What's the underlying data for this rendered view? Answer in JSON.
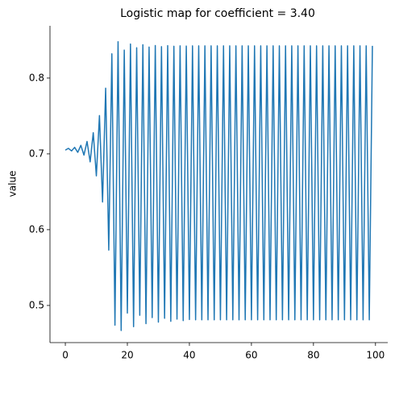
{
  "chart_data": {
    "type": "line",
    "title": "Logistic map for coefficient = 3.40",
    "y_label": "value",
    "x": [
      0,
      1,
      2,
      3,
      4,
      5,
      6,
      7,
      8,
      9,
      10,
      11,
      12,
      13,
      14,
      15,
      16,
      17,
      18,
      19,
      20,
      21,
      22,
      23,
      24,
      25,
      26,
      27,
      28,
      29,
      30,
      31,
      32,
      33,
      34,
      35,
      36,
      37,
      38,
      39,
      40,
      41,
      42,
      43,
      44,
      45,
      46,
      47,
      48,
      49,
      50,
      51,
      52,
      53,
      54,
      55,
      56,
      57,
      58,
      59,
      60,
      61,
      62,
      63,
      64,
      65,
      66,
      67,
      68,
      69,
      70,
      71,
      72,
      73,
      74,
      75,
      76,
      77,
      78,
      79,
      80,
      81,
      82,
      83,
      84,
      85,
      86,
      87,
      88,
      89,
      90,
      91,
      92,
      93,
      94,
      95,
      96,
      97,
      98,
      99
    ],
    "series": [
      {
        "name": "value",
        "color": "#1f77b4",
        "values": [
          0.7049,
          0.7073,
          0.7039,
          0.7086,
          0.702,
          0.7113,
          0.6984,
          0.7164,
          0.6895,
          0.728,
          0.671,
          0.7506,
          0.6365,
          0.7867,
          0.573,
          0.832,
          0.474,
          0.848,
          0.467,
          0.837,
          0.49,
          0.845,
          0.472,
          0.84,
          0.487,
          0.844,
          0.476,
          0.841,
          0.484,
          0.843,
          0.478,
          0.8415,
          0.483,
          0.8428,
          0.479,
          0.842,
          0.482,
          0.8426,
          0.48,
          0.8423,
          0.4815,
          0.8425,
          0.481,
          0.8425,
          0.481,
          0.8425,
          0.481,
          0.8425,
          0.481,
          0.8425,
          0.481,
          0.8425,
          0.481,
          0.8425,
          0.481,
          0.8425,
          0.481,
          0.8425,
          0.481,
          0.8425,
          0.481,
          0.8425,
          0.481,
          0.8425,
          0.481,
          0.8425,
          0.481,
          0.8425,
          0.481,
          0.8425,
          0.481,
          0.8425,
          0.481,
          0.8425,
          0.481,
          0.8425,
          0.481,
          0.8425,
          0.481,
          0.8425,
          0.481,
          0.8425,
          0.481,
          0.8425,
          0.481,
          0.8425,
          0.481,
          0.8425,
          0.481,
          0.8425,
          0.481,
          0.8425,
          0.481,
          0.8425,
          0.481,
          0.8425,
          0.481,
          0.8425,
          0.481,
          0.8425
        ]
      }
    ],
    "xlim": [
      -4.95,
      103.95
    ],
    "xticks": [
      0,
      20,
      40,
      60,
      80,
      100
    ],
    "ylim": [
      0.451,
      0.869
    ],
    "yticks": [
      0.5,
      0.6,
      0.7,
      0.8
    ]
  }
}
